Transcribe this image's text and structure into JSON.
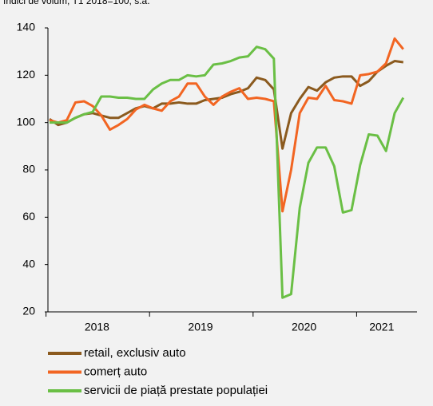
{
  "chart_data": {
    "type": "line",
    "subtitle": "Indici de volum, T1 2018=100, s.a.",
    "categories": [
      null,
      null,
      null,
      null,
      null,
      null,
      "2018",
      null,
      null,
      null,
      null,
      null,
      null,
      null,
      null,
      null,
      null,
      null,
      "2019",
      null,
      null,
      null,
      null,
      null,
      null,
      null,
      null,
      null,
      null,
      null,
      "2020",
      null,
      null,
      null,
      null,
      null,
      null,
      null,
      null,
      "2021",
      null,
      null
    ],
    "series": [
      {
        "name": "retail, exclusiv auto",
        "color": "#8b5a1e",
        "values": [
          101.5,
          99,
          100,
          102,
          103.5,
          104,
          103,
          102,
          102,
          104,
          106,
          107,
          106,
          108,
          108,
          108.5,
          108,
          108,
          109.5,
          110,
          110.5,
          112,
          113,
          114.5,
          119,
          118,
          114,
          89,
          104,
          110,
          115,
          113.5,
          117,
          119,
          119.5,
          119.5,
          115.5,
          117.5,
          121.5,
          124,
          126,
          125.5
        ]
      },
      {
        "name": "comerț auto",
        "color": "#f26522",
        "values": [
          101,
          100,
          101,
          108.5,
          109,
          107,
          103,
          97,
          99,
          101.5,
          105.5,
          107.5,
          106,
          105,
          109,
          111,
          116.5,
          116.5,
          111,
          107.5,
          111,
          113,
          114.5,
          110,
          110.5,
          110,
          109,
          62.5,
          80,
          104,
          110.5,
          110,
          115.5,
          109.5,
          109,
          108,
          120,
          120.5,
          121.5,
          125,
          135.5,
          131
        ]
      },
      {
        "name": "servicii de piață prestate populației",
        "color": "#6abf45",
        "values": [
          100,
          100,
          100,
          102,
          103.5,
          104.5,
          111,
          111,
          110.5,
          110.5,
          110,
          110,
          114,
          116.5,
          118,
          118,
          120,
          119.5,
          120,
          124.5,
          125,
          126,
          127.5,
          128,
          132,
          131,
          127,
          26,
          27.5,
          64,
          83,
          89.5,
          89.5,
          81.5,
          62,
          63,
          82,
          95,
          94.5,
          88,
          104,
          110.5
        ]
      }
    ],
    "ylim": [
      20,
      140
    ],
    "yticks": [
      20,
      40,
      60,
      80,
      100,
      120,
      140
    ],
    "grid": false
  }
}
